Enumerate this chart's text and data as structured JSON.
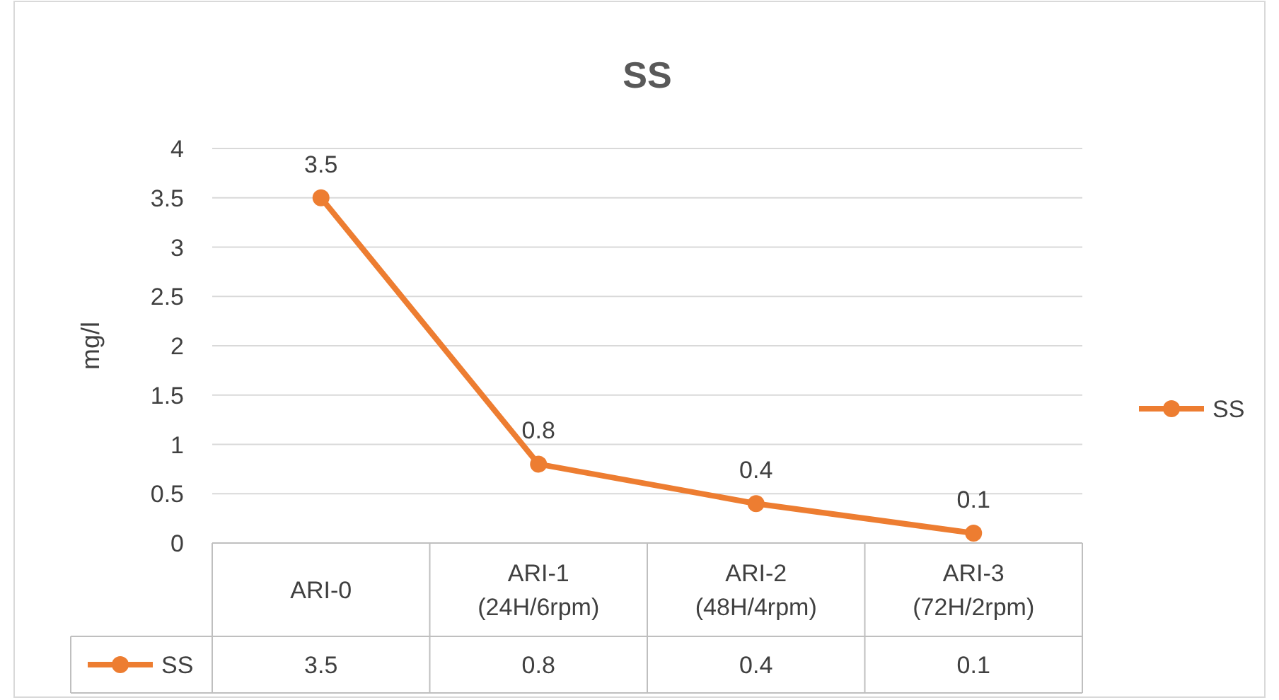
{
  "chart_data": {
    "type": "line",
    "title": "SS",
    "ylabel": "mg/l",
    "categories": [
      "ARI-0",
      "ARI-1 (24H/6rpm)",
      "ARI-2 (48H/4rpm)",
      "ARI-3 (72H/2rpm)"
    ],
    "series": [
      {
        "name": "SS",
        "color": "#ed7d31",
        "values": [
          3.5,
          0.8,
          0.4,
          0.1
        ]
      }
    ],
    "annotations": [
      {
        "text": "3.5",
        "x": "ARI-0",
        "y": 3.5
      },
      {
        "text": "0.8",
        "x": "ARI-1 (24H/6rpm)",
        "y": 0.8
      },
      {
        "text": "0.4",
        "x": "ARI-2 (48H/4rpm)",
        "y": 0.4
      },
      {
        "text": "0.1",
        "x": "ARI-3 (72H/2rpm)",
        "y": 0.1
      }
    ],
    "ylim": [
      0,
      4
    ],
    "yticks": [
      0,
      0.5,
      1,
      1.5,
      2,
      2.5,
      3,
      3.5,
      4
    ],
    "grid": "y",
    "legend": "bottom left",
    "marker": "circle",
    "data_labels": true
  }
}
